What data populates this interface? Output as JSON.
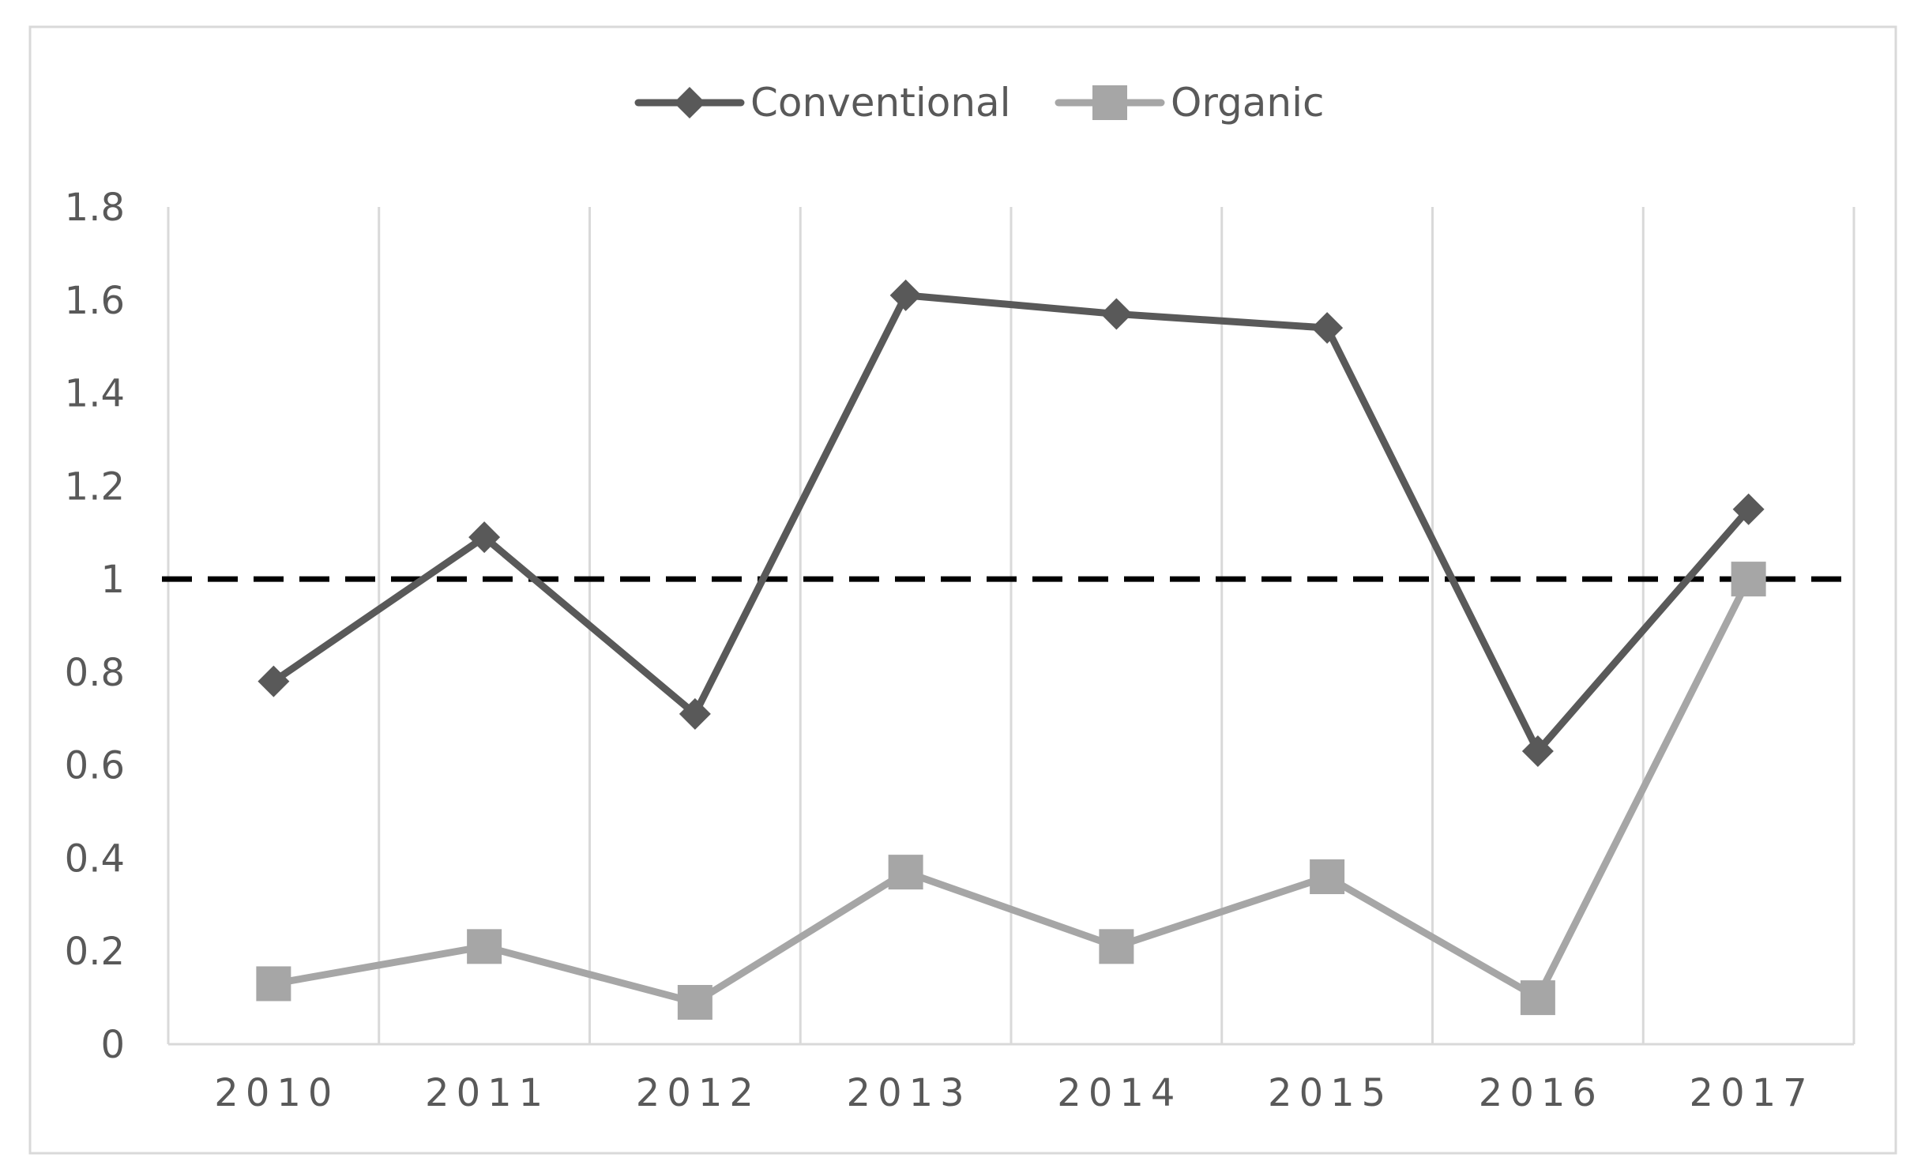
{
  "chart_data": {
    "type": "line",
    "title": "",
    "xlabel": "",
    "ylabel": "",
    "categories": [
      "2010",
      "2011",
      "2012",
      "2013",
      "2014",
      "2015",
      "2016",
      "2017"
    ],
    "series": [
      {
        "name": "Conventional",
        "marker": "diamond",
        "color": "#595959",
        "values": [
          0.78,
          1.09,
          0.71,
          1.61,
          1.57,
          1.54,
          0.63,
          1.15
        ]
      },
      {
        "name": "Organic",
        "marker": "square",
        "color": "#A6A6A6",
        "values": [
          0.13,
          0.21,
          0.09,
          0.37,
          0.21,
          0.36,
          0.1,
          1.0
        ]
      }
    ],
    "reference_line": {
      "y": 1,
      "style": "dashed",
      "color": "#000000"
    },
    "ylim": [
      0,
      1.8
    ],
    "yticks": [
      "0",
      "0.2",
      "0.4",
      "0.6",
      "0.8",
      "1",
      "1.2",
      "1.4",
      "1.6",
      "1.8"
    ],
    "grid": "vertical",
    "legend_position": "top-center"
  }
}
